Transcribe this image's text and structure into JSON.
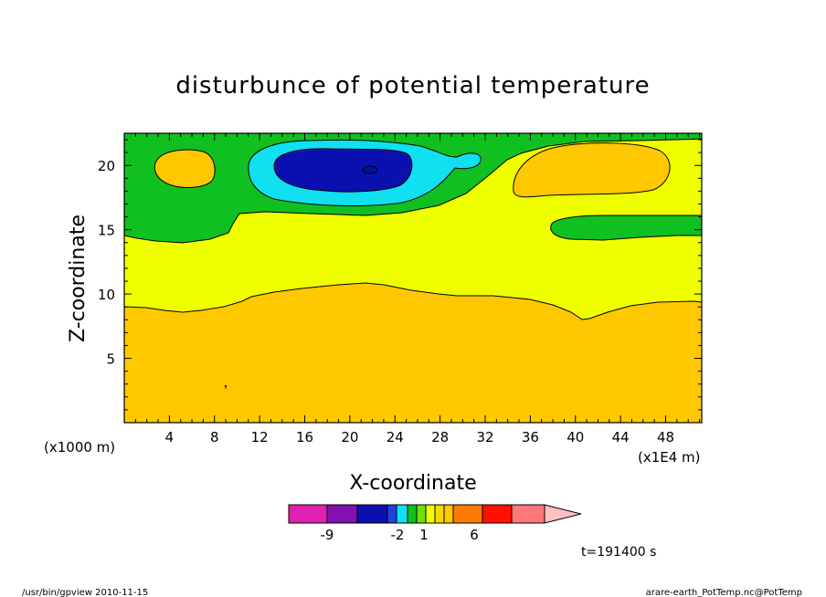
{
  "chart_data": {
    "type": "heatmap",
    "title": "disturbunce of potential temperature",
    "xlabel": "X-coordinate",
    "ylabel": "Z-coordinate",
    "x_unit_left": "(x1000 m)",
    "x_unit_right": "(x1E4 m)",
    "x_ticks": [
      "4",
      "8",
      "12",
      "16",
      "20",
      "24",
      "28",
      "32",
      "36",
      "40",
      "44",
      "48"
    ],
    "y_ticks": [
      "5",
      "10",
      "15",
      "20"
    ],
    "xlim": [
      0,
      51.2
    ],
    "ylim": [
      0,
      22.5
    ],
    "time_label": "t=191400 s",
    "colorbar": {
      "colors": [
        "#e020b0",
        "#8010b0",
        "#0a10b0",
        "#2040e0",
        "#10e0f0",
        "#10c020",
        "#70e000",
        "#f0ff00",
        "#f8d800",
        "#ffc800",
        "#ff7a00",
        "#ff1000",
        "#ff7878",
        "#ffc0c0"
      ],
      "labels": [
        "-9",
        "-2",
        "1",
        "6"
      ],
      "extend": "max"
    },
    "contour_regions": [
      {
        "level": "fill",
        "color": "#ffc800"
      },
      {
        "level": "0..1",
        "color": "#f0ff00"
      },
      {
        "level": "-1..0",
        "color": "#10c020"
      },
      {
        "level": "-2..-1",
        "color": "#10e0f0"
      },
      {
        "level": "-3..-2",
        "color": "#0a10b0"
      }
    ]
  },
  "footer": {
    "left": "/usr/bin/gpview 2010-11-15",
    "right": "arare-earth_PotTemp.nc@PotTemp"
  }
}
